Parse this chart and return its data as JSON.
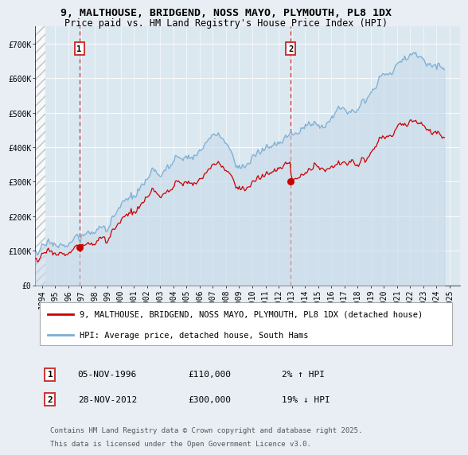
{
  "title": "9, MALTHOUSE, BRIDGEND, NOSS MAYO, PLYMOUTH, PL8 1DX",
  "subtitle": "Price paid vs. HM Land Registry's House Price Index (HPI)",
  "background_color": "#e8eef4",
  "plot_bg_color": "#dce8f0",
  "ylabel": "",
  "yticks": [
    0,
    100000,
    200000,
    300000,
    400000,
    500000,
    600000,
    700000
  ],
  "ytick_labels": [
    "£0",
    "£100K",
    "£200K",
    "£300K",
    "£400K",
    "£500K",
    "£600K",
    "£700K"
  ],
  "xlim_start": 1993.5,
  "xlim_end": 2025.8,
  "ylim": [
    0,
    750000
  ],
  "marker1_x": 1996.85,
  "marker1_y": 110000,
  "marker1_label": "1",
  "marker2_x": 2012.91,
  "marker2_y": 300000,
  "marker2_label": "2",
  "red_line_color": "#cc0000",
  "blue_line_color": "#7bafd4",
  "blue_fill_color": "#c5d8ea",
  "annotation_box_color": "#cc3333",
  "legend_entry1": "9, MALTHOUSE, BRIDGEND, NOSS MAYO, PLYMOUTH, PL8 1DX (detached house)",
  "legend_entry2": "HPI: Average price, detached house, South Hams",
  "table_row1": [
    "1",
    "05-NOV-1996",
    "£110,000",
    "2% ↑ HPI"
  ],
  "table_row2": [
    "2",
    "28-NOV-2012",
    "£300,000",
    "19% ↓ HPI"
  ],
  "footer": "Contains HM Land Registry data © Crown copyright and database right 2025.\nThis data is licensed under the Open Government Licence v3.0.",
  "title_fontsize": 9.5,
  "subtitle_fontsize": 8.5,
  "tick_fontsize": 7,
  "legend_fontsize": 7.5,
  "table_fontsize": 8
}
